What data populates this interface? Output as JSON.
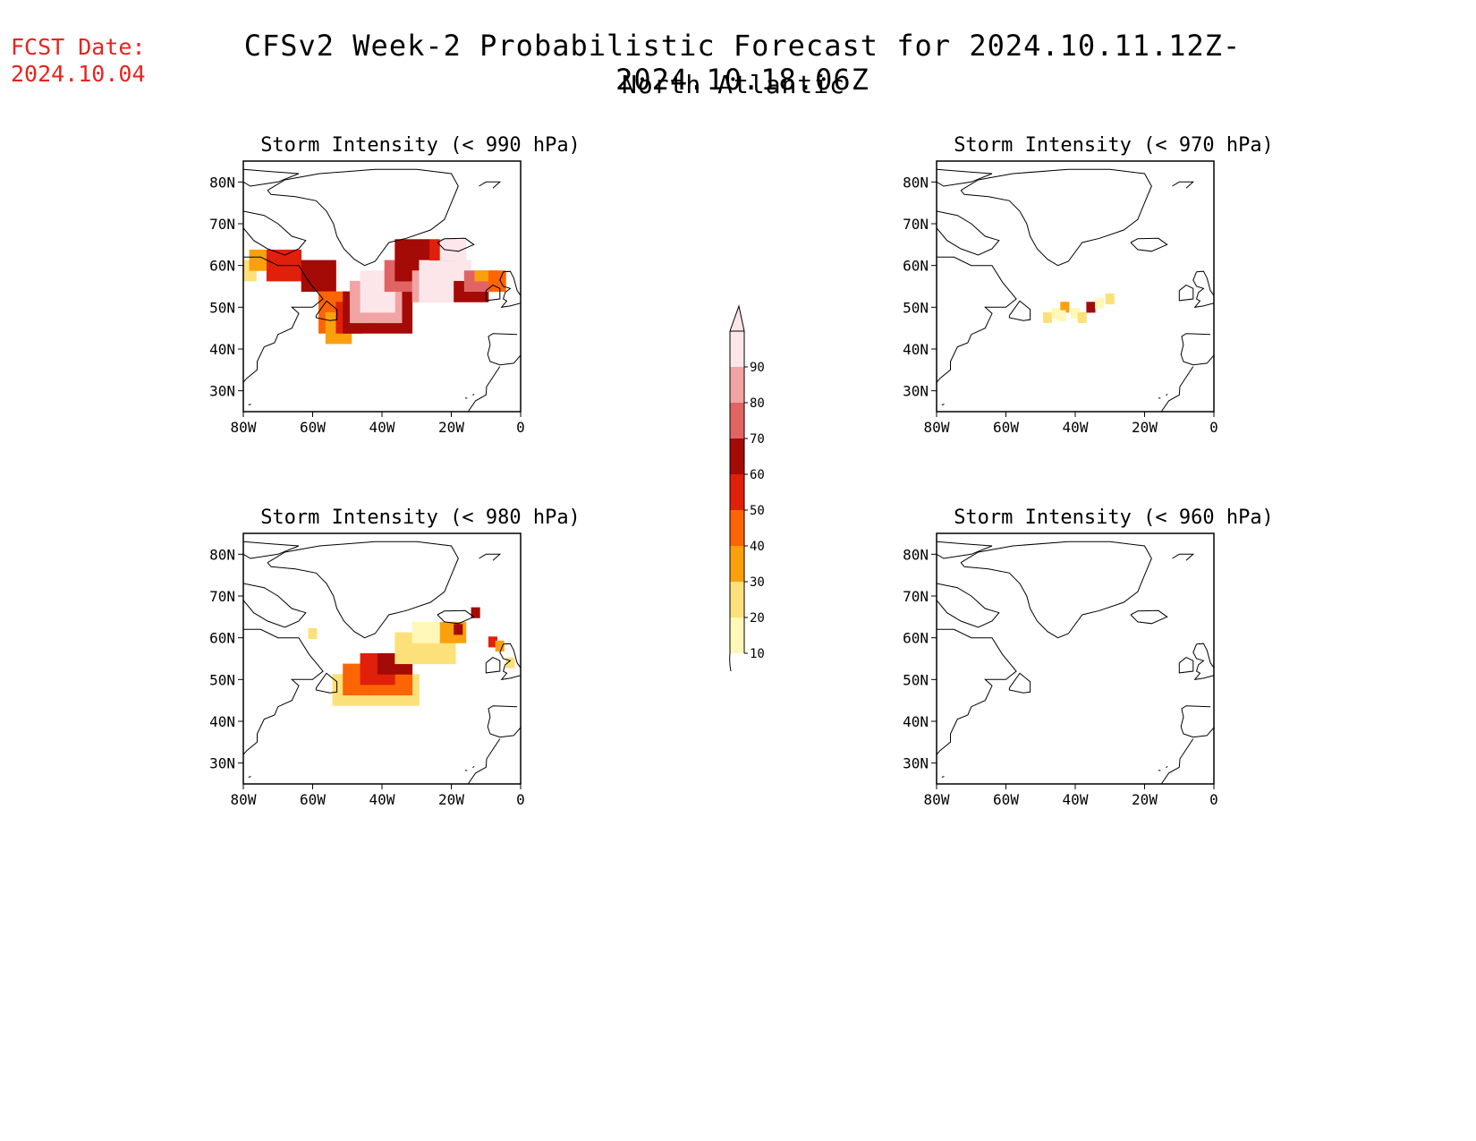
{
  "header": {
    "fcst_label": "FCST Date:",
    "fcst_date": "2024.10.04",
    "title": "CFSv2 Week-2 Probabilistic Forecast for 2024.10.11.12Z-2024.10.18.06Z",
    "subtitle": "North Atlantic"
  },
  "axes": {
    "lat_labels": [
      "80N",
      "70N",
      "60N",
      "50N",
      "40N",
      "30N"
    ],
    "lon_labels": [
      "80W",
      "60W",
      "40W",
      "20W",
      "0"
    ]
  },
  "panels": [
    {
      "id": "p1",
      "title": "Storm Intensity (< 990 hPa)"
    },
    {
      "id": "p2",
      "title": "Storm Intensity (< 970 hPa)"
    },
    {
      "id": "p3",
      "title": "Storm Intensity (< 980 hPa)"
    },
    {
      "id": "p4",
      "title": "Storm Intensity (< 960 hPa)"
    }
  ],
  "colorbar": {
    "labels": [
      "10",
      "20",
      "30",
      "40",
      "50",
      "60",
      "70",
      "80",
      "90"
    ],
    "colors": [
      "#fff8b8",
      "#fce17a",
      "#fba00d",
      "#fb6506",
      "#e0200a",
      "#a40a06",
      "#e16464",
      "#f2a3a3",
      "#fde6ea"
    ]
  }
}
